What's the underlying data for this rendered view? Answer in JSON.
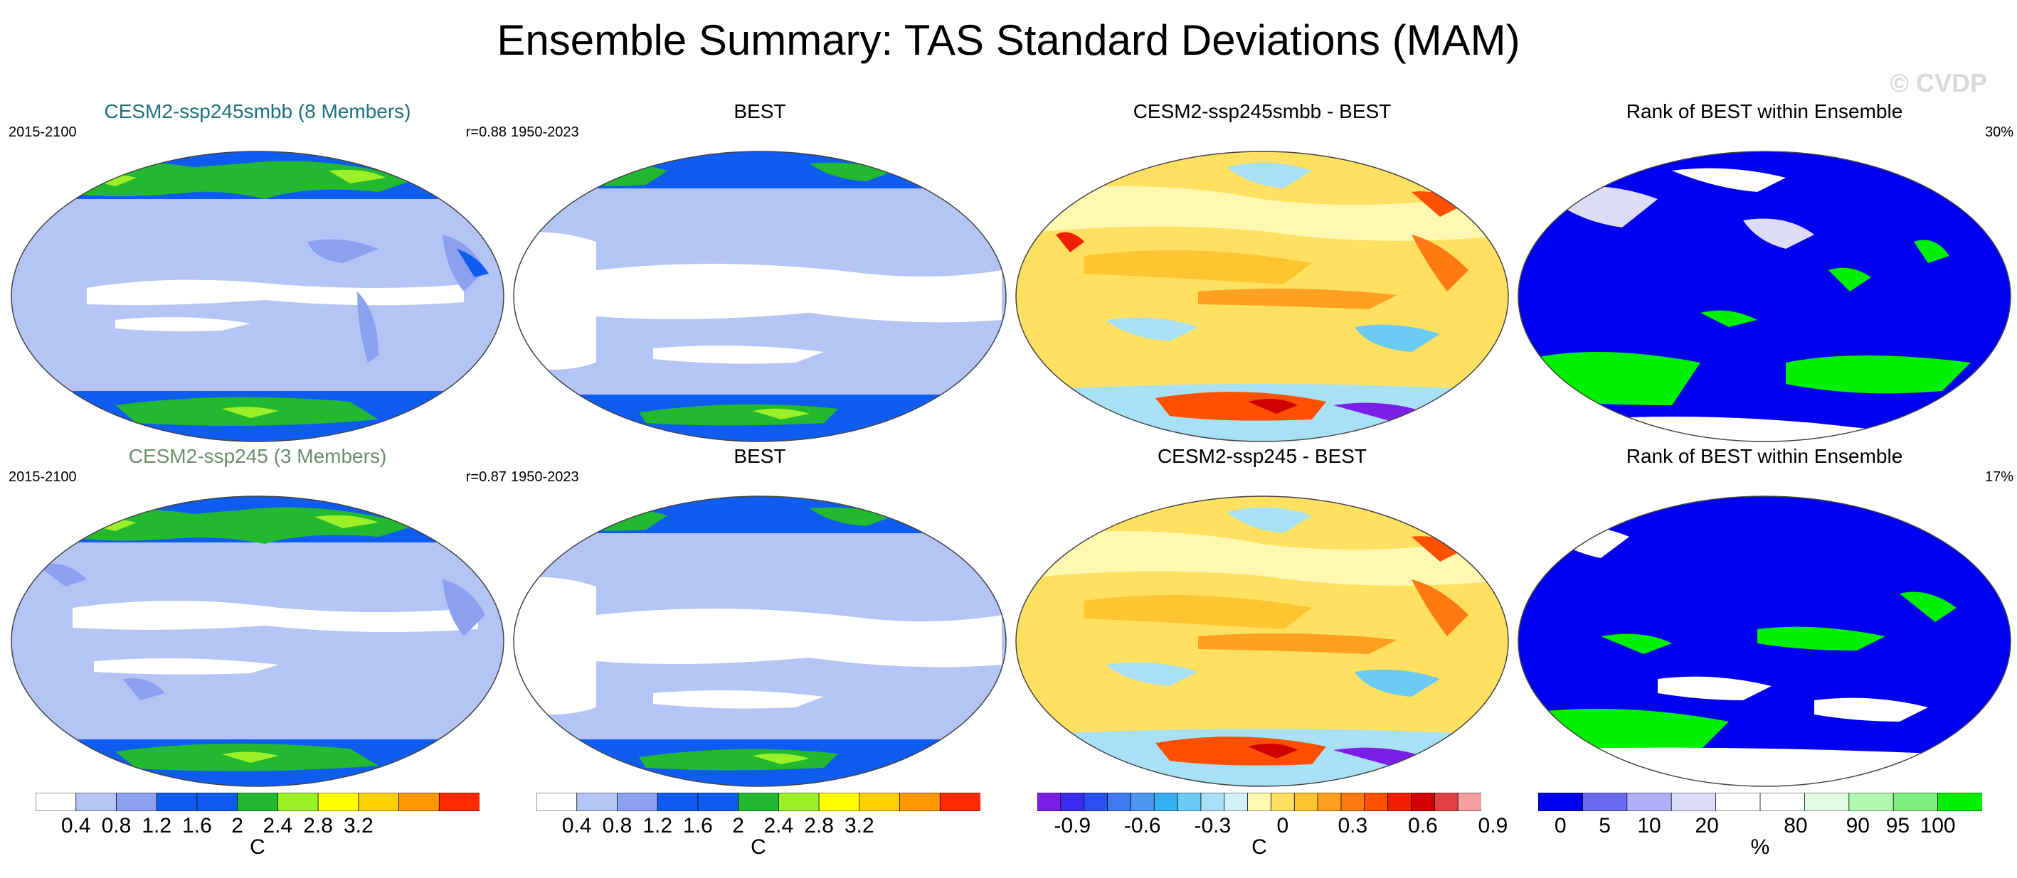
{
  "title": "Ensemble Summary: TAS Standard Deviations (MAM)",
  "watermark": "© CVDP",
  "colors": {
    "title_teal": "#20707f",
    "title_green": "#6b8f6b",
    "ocean_white": "#ffffff",
    "lavender": "#b4c4f5",
    "periwinkle": "#8ca0f0",
    "blue": "#0f5cf0",
    "green": "#22b830",
    "yellow_green": "#9cf028",
    "yellow": "#ffff00",
    "rank_blue": "#0000f0",
    "rank_green": "#00f000",
    "rank_pale": "#dcdcf8"
  },
  "panels": [
    {
      "title": "CESM2-ssp245smbb (8 Members)",
      "left": "2015-2100",
      "right": "r=0.88",
      "style": "std"
    },
    {
      "title": "BEST",
      "left": "1950-2023",
      "right": "",
      "style": "std"
    },
    {
      "title": "CESM2-ssp245smbb - BEST",
      "left": "",
      "right": "",
      "style": "diff"
    },
    {
      "title": "Rank of BEST within Ensemble",
      "left": "",
      "right": "30%",
      "style": "rank"
    },
    {
      "title": "CESM2-ssp245 (3 Members)",
      "left": "2015-2100",
      "right": "r=0.87",
      "style": "std"
    },
    {
      "title": "BEST",
      "left": "1950-2023",
      "right": "",
      "style": "std"
    },
    {
      "title": "CESM2-ssp245 - BEST",
      "left": "",
      "right": "",
      "style": "diff"
    },
    {
      "title": "Rank of BEST within Ensemble",
      "left": "",
      "right": "17%",
      "style": "rank"
    }
  ],
  "colorbars": [
    {
      "unit": "C",
      "colors": [
        "#ffffff",
        "#b4c4f5",
        "#8ca0f0",
        "#0f5cf0",
        "#0f5cf0",
        "#22b830",
        "#9cf028",
        "#ffff00",
        "#ffd000",
        "#ff9800",
        "#ff2a00"
      ],
      "labels": [
        "0.4",
        "0.8",
        "1.2",
        "1.6",
        "2",
        "2.4",
        "2.8",
        "3.2"
      ]
    },
    {
      "unit": "C",
      "colors": [
        "#ffffff",
        "#b4c4f5",
        "#8ca0f0",
        "#0f5cf0",
        "#0f5cf0",
        "#22b830",
        "#9cf028",
        "#ffff00",
        "#ffd000",
        "#ff9800",
        "#ff2a00"
      ],
      "labels": [
        "0.4",
        "0.8",
        "1.2",
        "1.6",
        "2",
        "2.4",
        "2.8",
        "3.2"
      ]
    },
    {
      "unit": "C",
      "colors": [
        "#7a1ee8",
        "#3a2cf0",
        "#2a50f0",
        "#3f7af0",
        "#4c98f0",
        "#34b0f0",
        "#6ccbf5",
        "#a8e0f5",
        "#d4f0f8",
        "#fff8b0",
        "#ffe060",
        "#ffc430",
        "#ffa020",
        "#ff7a10",
        "#ff5000",
        "#f02000",
        "#d00000",
        "#e04040",
        "#f4a0a0"
      ],
      "labels": [
        "-0.9",
        "-0.6",
        "-0.3",
        "0",
        "0.3",
        "0.6",
        "0.9"
      ]
    },
    {
      "unit": "%",
      "colors": [
        "#0000f0",
        "#6a6af0",
        "#b0b0f8",
        "#dcdcf8",
        "#ffffff",
        "#ffffff",
        "#e0fbe0",
        "#b0f8b0",
        "#80f080",
        "#00f000"
      ],
      "labels": [
        "0",
        "5",
        "10",
        "20",
        "80",
        "90",
        "95",
        "100"
      ]
    }
  ]
}
